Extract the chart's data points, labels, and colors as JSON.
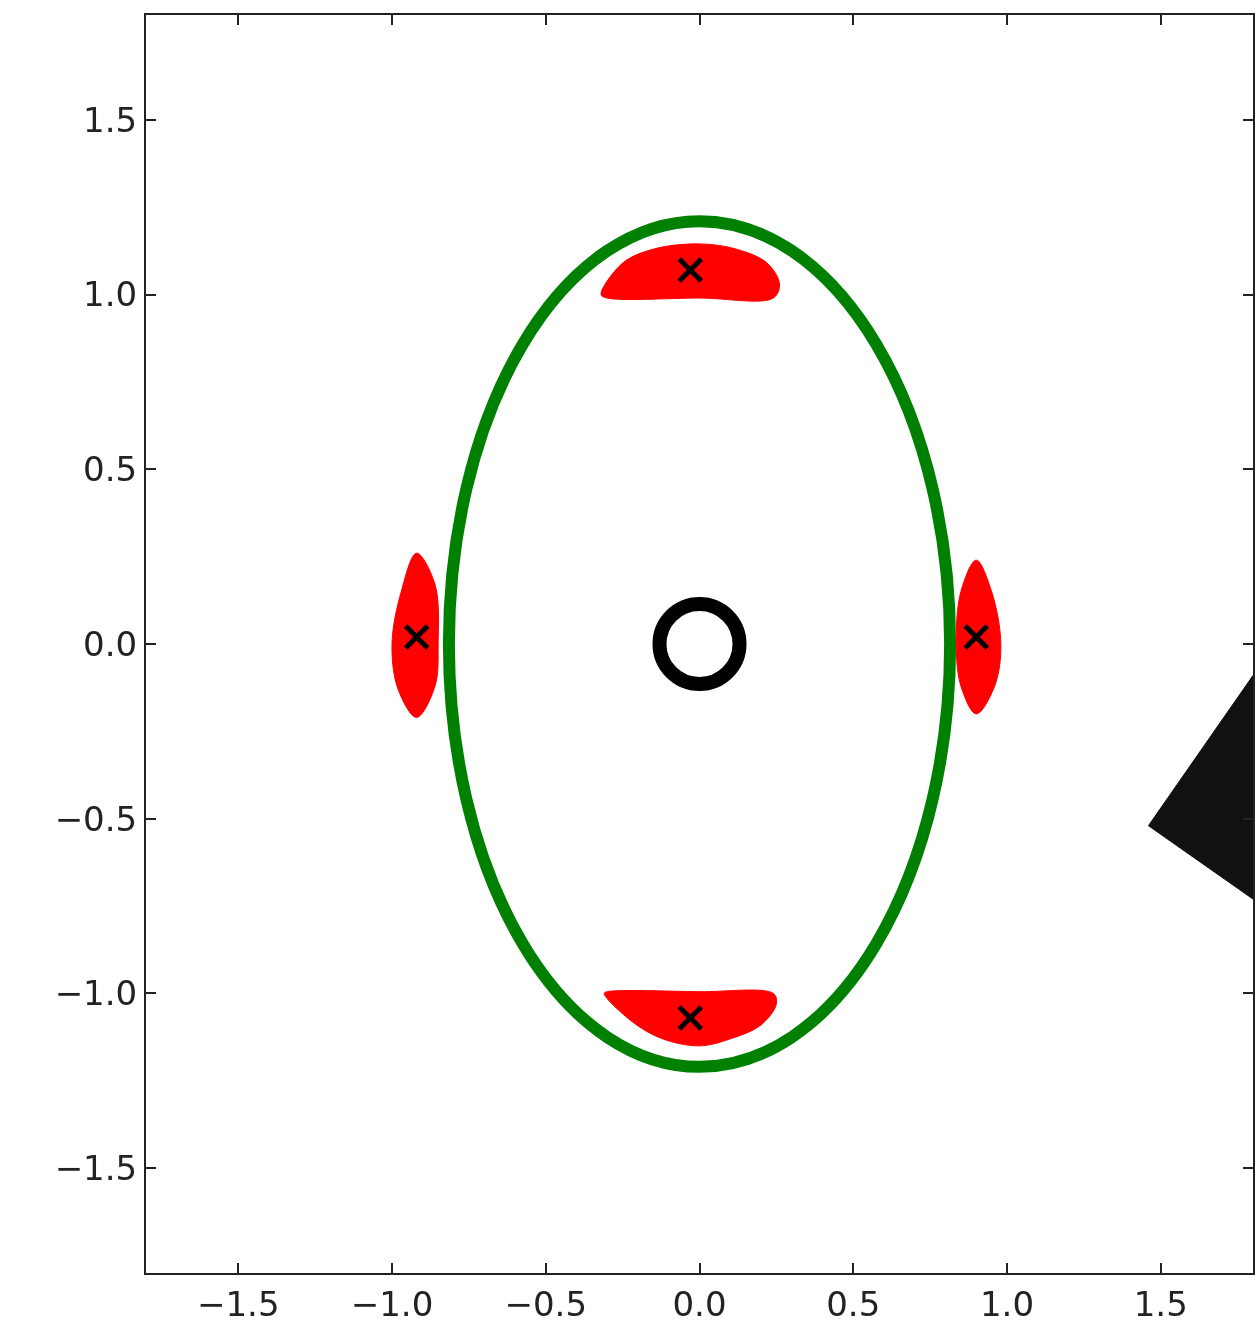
{
  "chart_data": {
    "type": "area",
    "xlim": [
      -1.8,
      1.8
    ],
    "ylim": [
      -1.8,
      1.8
    ],
    "xticks": [
      {
        "value": -1.5,
        "label": "−1.5"
      },
      {
        "value": -1.0,
        "label": "−1.0"
      },
      {
        "value": -0.5,
        "label": "−0.5"
      },
      {
        "value": 0.0,
        "label": "0.0"
      },
      {
        "value": 0.5,
        "label": "0.5"
      },
      {
        "value": 1.0,
        "label": "1.0"
      },
      {
        "value": 1.5,
        "label": "1.5"
      }
    ],
    "yticks": [
      {
        "value": -1.5,
        "label": "−1.5"
      },
      {
        "value": -1.0,
        "label": "−1.0"
      },
      {
        "value": -0.5,
        "label": "−0.5"
      },
      {
        "value": 0.0,
        "label": "0.0"
      },
      {
        "value": 0.5,
        "label": "0.5"
      },
      {
        "value": 1.0,
        "label": "1.0"
      },
      {
        "value": 1.5,
        "label": "1.5"
      }
    ],
    "grid": false,
    "legend": false,
    "series": [
      {
        "type": "area",
        "color": "#ff0000",
        "x": [
          -0.32,
          -0.25,
          -0.15,
          0,
          0.12,
          0.22,
          0.26,
          0.24,
          0,
          -0.3,
          -0.32
        ],
        "values": [
          1.0,
          1.09,
          1.13,
          1.145,
          1.13,
          1.09,
          1.03,
          0.99,
          0.99,
          0.99,
          1.0
        ]
      },
      {
        "type": "area",
        "color": "#ff0000",
        "x": [
          -0.31,
          -0.3,
          0,
          0.24,
          0.25,
          0.2,
          0.1,
          0,
          -0.12,
          -0.22,
          -0.31
        ],
        "values": [
          -1.0,
          -0.995,
          -0.995,
          -1.0,
          -1.03,
          -1.09,
          -1.13,
          -1.15,
          -1.13,
          -1.08,
          -1.0
        ]
      },
      {
        "type": "area",
        "color": "#ff0000",
        "x": [
          -0.92,
          -0.97,
          -1.0,
          -0.98,
          -0.92,
          -0.86,
          -0.85,
          -0.86,
          -0.92
        ],
        "values": [
          0.26,
          0.15,
          0,
          -0.13,
          -0.21,
          -0.12,
          0,
          0.17,
          0.26
        ]
      },
      {
        "type": "area",
        "color": "#ff0000",
        "x": [
          0.9,
          0.95,
          0.98,
          0.96,
          0.9,
          0.85,
          0.835,
          0.85,
          0.9
        ],
        "values": [
          0.24,
          0.15,
          0,
          -0.12,
          -0.2,
          -0.12,
          0,
          0.15,
          0.24
        ]
      },
      {
        "type": "scatter",
        "marker": "cross",
        "color": "#000000",
        "x": [
          -0.03,
          -0.03,
          -0.92,
          0.9
        ],
        "values": [
          1.07,
          -1.07,
          0.02,
          0.02
        ]
      },
      {
        "type": "scatter",
        "marker": "circle",
        "color": "#000000",
        "x": [
          0
        ],
        "values": [
          0
        ]
      },
      {
        "color": "#111111",
        "x": [
          1.46,
          1.8,
          1.8,
          1.46
        ],
        "values": [
          -0.52,
          -0.09,
          -0.73,
          -0.52
        ]
      }
    ]
  }
}
